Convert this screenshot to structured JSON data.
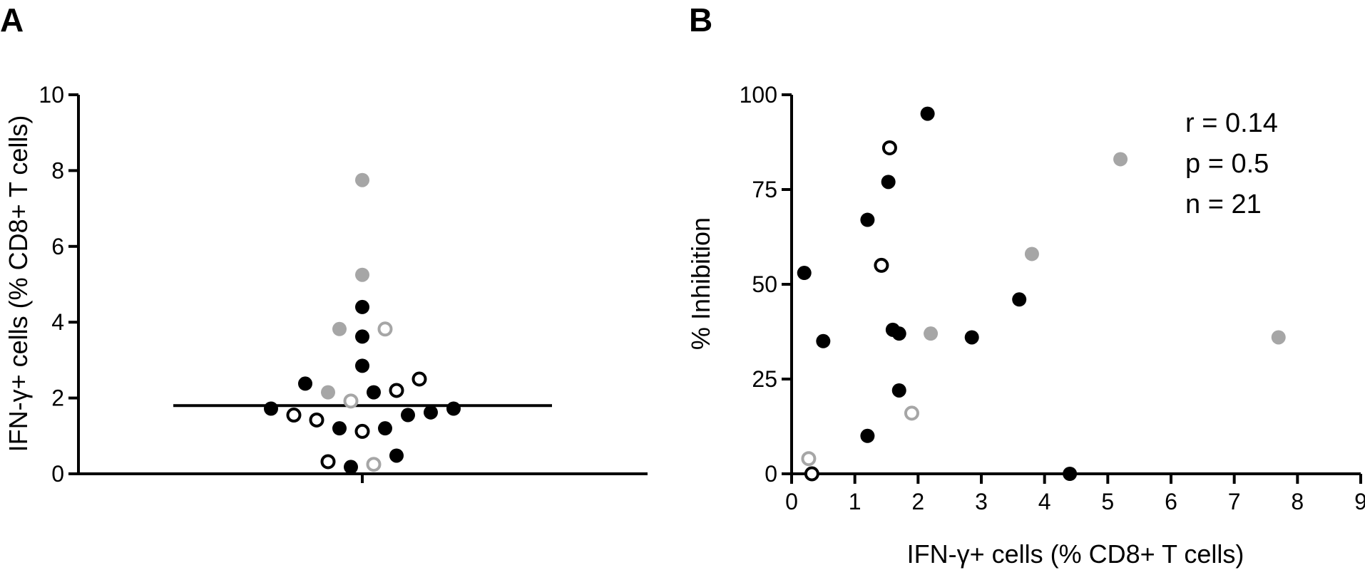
{
  "chart_data": [
    {
      "panel": "A",
      "type": "scatter",
      "title": "",
      "xlabel": "",
      "ylabel": "IFN-γ+ cells (% CD8+ T cells)",
      "ylim": [
        0,
        10
      ],
      "yticks": [
        0,
        2,
        4,
        6,
        8,
        10
      ],
      "median": 1.8,
      "legend": "none",
      "grid": false,
      "colors": {
        "black": "#000000",
        "gray": "#a6a6a6"
      },
      "points": [
        {
          "slot": 0,
          "y": 7.75,
          "style": "gray-filled"
        },
        {
          "slot": 0,
          "y": 5.25,
          "style": "gray-filled"
        },
        {
          "slot": 0,
          "y": 4.4,
          "style": "black-filled"
        },
        {
          "slot": -1,
          "y": 3.82,
          "style": "gray-filled"
        },
        {
          "slot": 1,
          "y": 3.82,
          "style": "gray-open"
        },
        {
          "slot": 0,
          "y": 3.62,
          "style": "black-filled"
        },
        {
          "slot": 0,
          "y": 2.85,
          "style": "black-filled"
        },
        {
          "slot": 2.5,
          "y": 2.5,
          "style": "black-open"
        },
        {
          "slot": -2.5,
          "y": 2.38,
          "style": "black-filled"
        },
        {
          "slot": 1.5,
          "y": 2.2,
          "style": "black-open"
        },
        {
          "slot": -1.5,
          "y": 2.15,
          "style": "gray-filled"
        },
        {
          "slot": 0.5,
          "y": 2.15,
          "style": "black-filled"
        },
        {
          "slot": -0.5,
          "y": 1.92,
          "style": "gray-open"
        },
        {
          "slot": -4,
          "y": 1.72,
          "style": "black-filled"
        },
        {
          "slot": 4,
          "y": 1.72,
          "style": "black-filled"
        },
        {
          "slot": 3,
          "y": 1.62,
          "style": "black-filled"
        },
        {
          "slot": -3,
          "y": 1.55,
          "style": "black-open"
        },
        {
          "slot": 2,
          "y": 1.55,
          "style": "black-filled"
        },
        {
          "slot": -2,
          "y": 1.42,
          "style": "black-open"
        },
        {
          "slot": -1,
          "y": 1.2,
          "style": "black-filled"
        },
        {
          "slot": 1,
          "y": 1.2,
          "style": "black-filled"
        },
        {
          "slot": 0,
          "y": 1.12,
          "style": "black-open"
        },
        {
          "slot": 1.5,
          "y": 0.48,
          "style": "black-filled"
        },
        {
          "slot": -1.5,
          "y": 0.32,
          "style": "black-open"
        },
        {
          "slot": 0.5,
          "y": 0.25,
          "style": "gray-open"
        },
        {
          "slot": -0.5,
          "y": 0.18,
          "style": "black-filled"
        }
      ]
    },
    {
      "panel": "B",
      "type": "scatter",
      "title": "",
      "xlabel": "IFN-γ+ cells (% CD8+ T cells)",
      "ylabel": "% Inhibition",
      "xlim": [
        0,
        9
      ],
      "ylim": [
        0,
        100
      ],
      "xticks": [
        0,
        1,
        2,
        3,
        4,
        5,
        6,
        7,
        8,
        9
      ],
      "yticks": [
        0,
        25,
        50,
        75,
        100
      ],
      "legend": "none",
      "grid": false,
      "annotations": [
        "r = 0.14",
        "p = 0.5",
        "n = 21"
      ],
      "colors": {
        "black": "#000000",
        "gray": "#a6a6a6"
      },
      "points": [
        {
          "x": 2.15,
          "y": 95,
          "style": "black-filled"
        },
        {
          "x": 1.55,
          "y": 86,
          "style": "black-open"
        },
        {
          "x": 5.2,
          "y": 83,
          "style": "gray-filled"
        },
        {
          "x": 1.53,
          "y": 77,
          "style": "black-filled"
        },
        {
          "x": 1.2,
          "y": 67,
          "style": "black-filled"
        },
        {
          "x": 3.8,
          "y": 58,
          "style": "gray-filled"
        },
        {
          "x": 1.42,
          "y": 55,
          "style": "black-open"
        },
        {
          "x": 0.2,
          "y": 53,
          "style": "black-filled"
        },
        {
          "x": 3.6,
          "y": 46,
          "style": "black-filled"
        },
        {
          "x": 1.6,
          "y": 38,
          "style": "black-filled"
        },
        {
          "x": 1.7,
          "y": 37,
          "style": "black-filled"
        },
        {
          "x": 2.2,
          "y": 37,
          "style": "gray-filled"
        },
        {
          "x": 2.85,
          "y": 36,
          "style": "black-filled"
        },
        {
          "x": 7.7,
          "y": 36,
          "style": "gray-filled"
        },
        {
          "x": 0.5,
          "y": 35,
          "style": "black-filled"
        },
        {
          "x": 1.7,
          "y": 22,
          "style": "black-filled"
        },
        {
          "x": 1.9,
          "y": 16,
          "style": "gray-open"
        },
        {
          "x": 1.2,
          "y": 10,
          "style": "black-filled"
        },
        {
          "x": 0.27,
          "y": 4,
          "style": "gray-open"
        },
        {
          "x": 0.32,
          "y": 0,
          "style": "black-open"
        },
        {
          "x": 4.4,
          "y": 0,
          "style": "black-filled"
        }
      ]
    }
  ],
  "panels": {
    "a_label": "A",
    "b_label": "B"
  }
}
